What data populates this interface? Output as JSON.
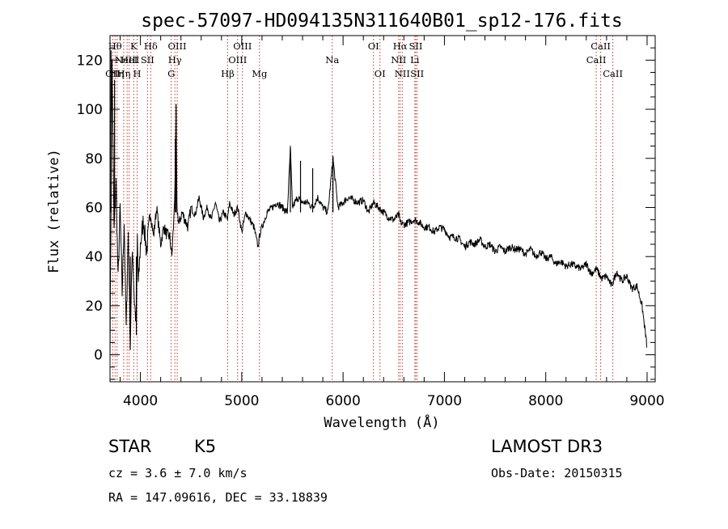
{
  "chart_data": {
    "type": "line",
    "title": "spec-57097-HD094135N311640B01_sp12-176.fits",
    "xlabel": "Wavelength (Å)",
    "ylabel": "Flux (relative)",
    "xlim": [
      3700,
      9080
    ],
    "ylim": [
      -11,
      130
    ],
    "xticks": [
      4000,
      5000,
      6000,
      7000,
      8000,
      9000
    ],
    "yticks": [
      0,
      20,
      40,
      60,
      80,
      100,
      120
    ],
    "series": [
      {
        "name": "flux",
        "x": [
          3700,
          3720,
          3740,
          3760,
          3780,
          3800,
          3820,
          3840,
          3860,
          3880,
          3900,
          3920,
          3940,
          3960,
          3970,
          3980,
          4000,
          4030,
          4060,
          4100,
          4130,
          4160,
          4200,
          4230,
          4260,
          4290,
          4310,
          4330,
          4345,
          4352,
          4360,
          4380,
          4410,
          4440,
          4470,
          4500,
          4540,
          4580,
          4620,
          4660,
          4700,
          4740,
          4780,
          4820,
          4860,
          4880,
          4920,
          4960,
          5000,
          5040,
          5080,
          5120,
          5160,
          5183,
          5200,
          5250,
          5300,
          5350,
          5400,
          5450,
          5480,
          5500,
          5550,
          5600,
          5650,
          5700,
          5750,
          5800,
          5850,
          5900,
          5950,
          6000,
          6050,
          6100,
          6150,
          6200,
          6250,
          6300,
          6350,
          6400,
          6450,
          6500,
          6550,
          6563,
          6600,
          6650,
          6700,
          6750,
          6800,
          6850,
          6900,
          6950,
          7000,
          7050,
          7100,
          7150,
          7200,
          7250,
          7300,
          7350,
          7400,
          7450,
          7500,
          7550,
          7600,
          7650,
          7700,
          7750,
          7800,
          7850,
          7900,
          7950,
          8000,
          8050,
          8100,
          8150,
          8200,
          8250,
          8300,
          8350,
          8400,
          8450,
          8500,
          8550,
          8600,
          8650,
          8700,
          8750,
          8800,
          8850,
          8900,
          8950,
          9000
        ],
        "y": [
          2,
          120,
          50,
          70,
          30,
          60,
          25,
          55,
          10,
          50,
          5,
          45,
          22,
          12,
          48,
          28,
          45,
          55,
          42,
          58,
          48,
          60,
          45,
          52,
          49,
          48,
          40,
          55,
          75,
          100,
          60,
          53,
          58,
          55,
          52,
          60,
          57,
          64,
          56,
          60,
          55,
          62,
          54,
          58,
          55,
          62,
          57,
          60,
          50,
          58,
          55,
          52,
          44,
          50,
          52,
          58,
          60,
          62,
          60,
          58,
          84,
          60,
          64,
          62,
          62,
          60,
          64,
          60,
          58,
          80,
          60,
          62,
          64,
          63,
          62,
          63,
          58,
          62,
          60,
          58,
          56,
          55,
          57,
          54,
          53,
          54,
          55,
          54,
          52,
          52,
          50,
          52,
          51,
          48,
          48,
          47,
          44,
          46,
          45,
          47,
          44,
          45,
          42,
          44,
          42,
          44,
          43,
          43,
          41,
          43,
          40,
          42,
          39,
          40,
          37,
          38,
          36,
          37,
          36,
          35,
          37,
          33,
          35,
          31,
          32,
          28,
          34,
          30,
          32,
          27,
          28,
          20,
          3
        ]
      }
    ],
    "spikes": [
      {
        "x": 3710,
        "y": 124
      },
      {
        "x": 3745,
        "y": 112
      },
      {
        "x": 4352,
        "y": 102
      },
      {
        "x": 4345,
        "y": 88
      },
      {
        "x": 5480,
        "y": 84
      },
      {
        "x": 5580,
        "y": 79
      },
      {
        "x": 5700,
        "y": 76
      },
      {
        "x": 5900,
        "y": 81
      },
      {
        "x": 3960,
        "y": 8
      },
      {
        "x": 3900,
        "y": 2
      }
    ],
    "lines": [
      {
        "wave": 3727,
        "label": "OII",
        "row": 2
      },
      {
        "wave": 3750,
        "label": "Hθ",
        "row": 0
      },
      {
        "wave": 3770,
        "label": "Hη",
        "row": 2
      },
      {
        "wave": 3835,
        "label": "Hη",
        "row": 2
      },
      {
        "wave": 3869,
        "label": "NeIII",
        "row": 1
      },
      {
        "wave": 3889,
        "label": "HeI",
        "row": 1
      },
      {
        "wave": 3934,
        "label": "K",
        "row": 0
      },
      {
        "wave": 3968,
        "label": "H",
        "row": 2
      },
      {
        "wave": 4070,
        "label": "SII",
        "row": 1
      },
      {
        "wave": 4102,
        "label": "Hδ",
        "row": 0
      },
      {
        "wave": 4304,
        "label": "G",
        "row": 2
      },
      {
        "wave": 4340,
        "label": "Hγ",
        "row": 1
      },
      {
        "wave": 4363,
        "label": "OIII",
        "row": 0
      },
      {
        "wave": 4861,
        "label": "Hβ",
        "row": 2
      },
      {
        "wave": 4959,
        "label": "OIII",
        "row": 1
      },
      {
        "wave": 5007,
        "label": "OIII",
        "row": 0
      },
      {
        "wave": 5175,
        "label": "Mg",
        "row": 2
      },
      {
        "wave": 5893,
        "label": "Na",
        "row": 1
      },
      {
        "wave": 6300,
        "label": "OI",
        "row": 0
      },
      {
        "wave": 6364,
        "label": "OI",
        "row": 2
      },
      {
        "wave": 6548,
        "label": "NII",
        "row": 1
      },
      {
        "wave": 6563,
        "label": "Hα",
        "row": 0
      },
      {
        "wave": 6584,
        "label": "NII",
        "row": 2
      },
      {
        "wave": 6708,
        "label": "Li",
        "row": 1
      },
      {
        "wave": 6717,
        "label": "SII",
        "row": 0
      },
      {
        "wave": 6731,
        "label": "SII",
        "row": 2
      },
      {
        "wave": 8498,
        "label": "CaII",
        "row": 1
      },
      {
        "wave": 8542,
        "label": "CaII",
        "row": 0
      },
      {
        "wave": 8662,
        "label": "CaII",
        "row": 2
      }
    ]
  },
  "info": {
    "object_class": "STAR",
    "subclass": "K5",
    "cz": "cz = 3.6 ± 7.0 km/s",
    "coords": "RA = 147.09616, DEC =  33.18839",
    "survey": "LAMOST DR3",
    "obs_date": "Obs-Date: 20150315"
  }
}
